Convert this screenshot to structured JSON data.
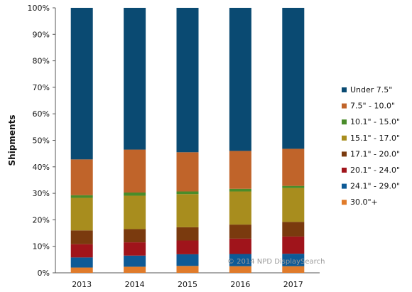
{
  "chart_data": {
    "type": "bar",
    "stacked": true,
    "categories": [
      "2013",
      "2014",
      "2015",
      "2016",
      "2017"
    ],
    "ylabel": "Shipments",
    "xlabel": "",
    "title": "",
    "ylim": [
      0,
      100
    ],
    "yticks": [
      "0%",
      "10%",
      "20%",
      "30%",
      "40%",
      "50%",
      "60%",
      "70%",
      "80%",
      "90%",
      "100%"
    ],
    "grid": false,
    "legend_position": "right",
    "series": [
      {
        "name": "30.0\"+",
        "color": "#e07b2a",
        "values": [
          2.0,
          2.3,
          2.6,
          2.5,
          2.5
        ]
      },
      {
        "name": "24.1\" - 29.0\"",
        "color": "#0d5a96",
        "values": [
          3.8,
          4.2,
          4.4,
          4.6,
          4.7
        ]
      },
      {
        "name": "20.1\" - 24.0\"",
        "color": "#a0141b",
        "values": [
          5.0,
          5.0,
          5.2,
          5.8,
          6.5
        ]
      },
      {
        "name": "17.1\" - 20.0\"",
        "color": "#7a3a0e",
        "values": [
          5.2,
          5.0,
          5.0,
          5.3,
          5.5
        ]
      },
      {
        "name": "15.1\" - 17.0\"",
        "color": "#a88d1e",
        "values": [
          12.3,
          12.6,
          12.5,
          12.5,
          12.8
        ]
      },
      {
        "name": "10.1\" - 15.0\"",
        "color": "#4a8c2a",
        "values": [
          1.0,
          1.2,
          1.0,
          1.0,
          0.8
        ]
      },
      {
        "name": "7.5\" - 10.0\"",
        "color": "#c0642a",
        "values": [
          13.5,
          16.2,
          14.8,
          14.3,
          14.0
        ]
      },
      {
        "name": "Under 7.5\"",
        "color": "#0a4a72",
        "values": [
          57.2,
          53.5,
          54.5,
          54.0,
          53.2
        ]
      }
    ],
    "annotation": "© 2014 NPD DisplaySearch"
  }
}
